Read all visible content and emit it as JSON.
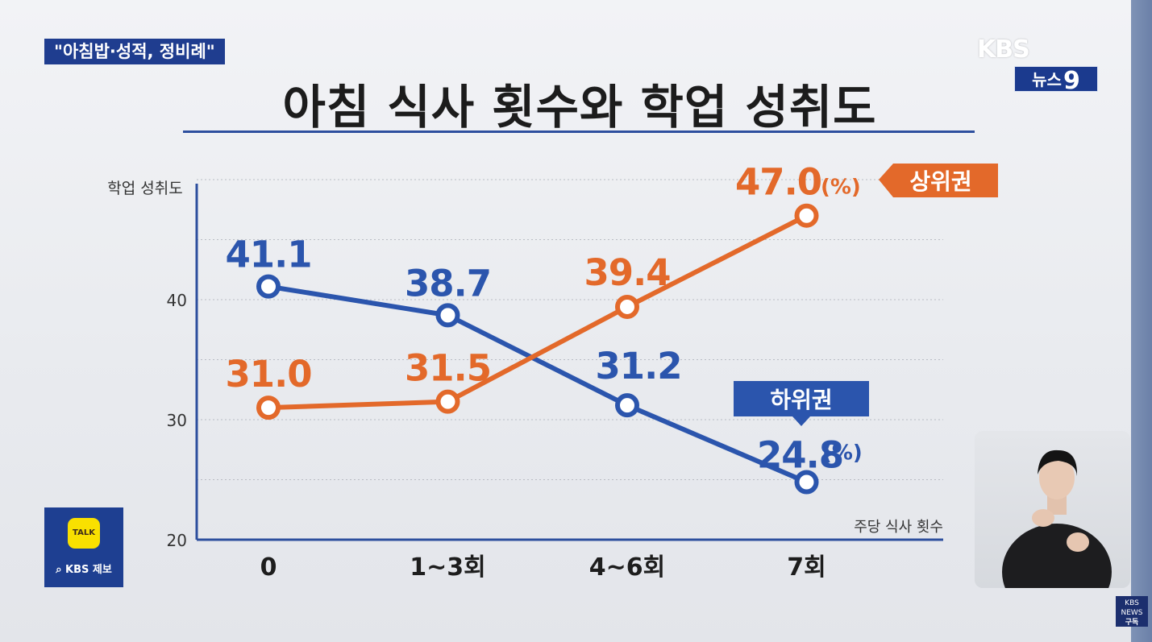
{
  "topic_tag": "\"아침밥·성적, 정비례\"",
  "broadcaster": {
    "logo_text": "KBS",
    "program_text": "뉴스",
    "program_number": "9"
  },
  "title": "아침 식사 횟수와 학업 성취도",
  "chart_data": {
    "type": "line",
    "ylabel": "학업 성취도",
    "xlabel": "주당 식사 횟수",
    "ylim": [
      20,
      50
    ],
    "yticks": [
      20,
      30,
      40
    ],
    "grid": true,
    "categories": [
      "0",
      "1~3회",
      "4~6회",
      "7회"
    ],
    "series": [
      {
        "name": "하위권",
        "color": "#2b55ad",
        "values": [
          41.1,
          38.7,
          31.2,
          24.8
        ],
        "labels": [
          "41.1",
          "38.7",
          "31.2",
          "24.8"
        ]
      },
      {
        "name": "상위권",
        "color": "#e3692a",
        "values": [
          31.0,
          31.5,
          39.4,
          47.0
        ],
        "labels": [
          "31.0",
          "31.5",
          "39.4",
          "47.0"
        ]
      }
    ],
    "unit_label": "(%)"
  },
  "kakao": {
    "bubble_text": "TALK",
    "label": "KBS 제보",
    "color": "#f9e000"
  },
  "subscribe": {
    "top_text": "KBS NEWS",
    "label": "구독"
  }
}
